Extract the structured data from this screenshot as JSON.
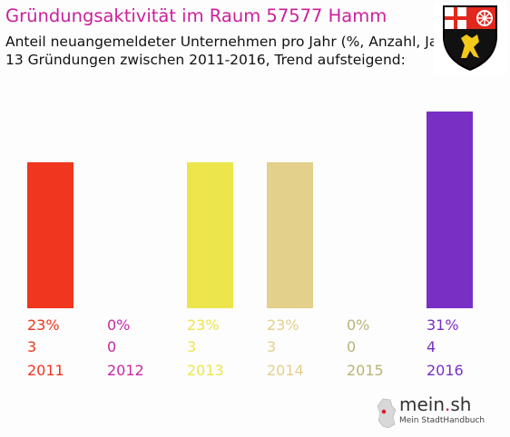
{
  "title": "Gründungsaktivität im Raum 57577 Hamm",
  "subtitle_line1": "Anteil neuangemeldeter Unternehmen pro Jahr (%, Anzahl, Jahr)",
  "subtitle_line2": "13 Gründungen zwischen 2011-2016, Trend aufsteigend:",
  "colors": {
    "title": "#cc1f9a",
    "bars": [
      "#f0361e",
      "#c728a3",
      "#ece64c",
      "#e3d08a",
      "#b9b374",
      "#7a2fc4"
    ]
  },
  "chart_data": {
    "type": "bar",
    "categories": [
      "2011",
      "2012",
      "2013",
      "2014",
      "2015",
      "2016"
    ],
    "percent_labels": [
      "23%",
      "0%",
      "23%",
      "23%",
      "0%",
      "31%"
    ],
    "count_labels": [
      "3",
      "0",
      "3",
      "3",
      "0",
      "4"
    ],
    "values": [
      23,
      0,
      23,
      23,
      0,
      31
    ],
    "ylim": [
      0,
      31
    ]
  },
  "logo": {
    "text": "mein",
    "dot": ".",
    "suffix": "sh",
    "tagline": "Mein StadtHandbuch"
  }
}
